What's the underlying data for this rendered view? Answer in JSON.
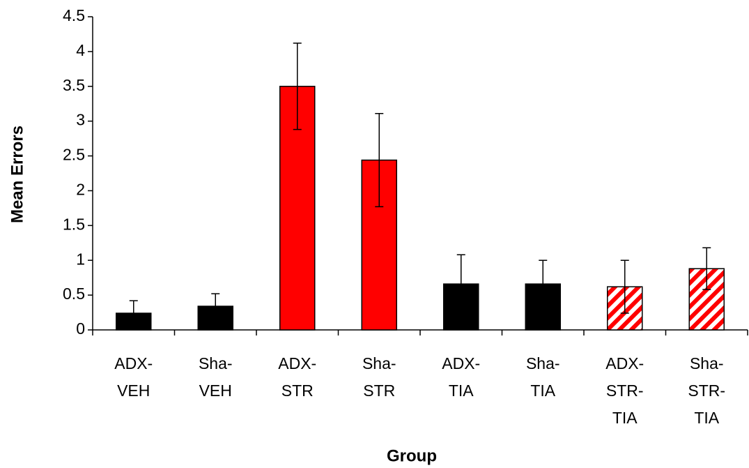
{
  "chart_data": {
    "type": "bar",
    "x_label": "Group",
    "y_label": "Mean Errors",
    "categories": [
      [
        "ADX-",
        "VEH"
      ],
      [
        "Sha-",
        "VEH"
      ],
      [
        "ADX-",
        "STR"
      ],
      [
        "Sha-",
        "STR"
      ],
      [
        "ADX-",
        "TIA"
      ],
      [
        "Sha-",
        "TIA"
      ],
      [
        "ADX-",
        "STR-",
        "TIA"
      ],
      [
        "Sha-",
        "STR-",
        "TIA"
      ]
    ],
    "values": [
      0.24,
      0.34,
      3.5,
      2.44,
      0.66,
      0.66,
      0.62,
      0.88
    ],
    "errors": [
      0.18,
      0.18,
      0.62,
      0.67,
      0.42,
      0.34,
      0.38,
      0.3
    ],
    "colors": [
      "#000000",
      "#000000",
      "#ff0000",
      "#ff0000",
      "#000000",
      "#000000",
      "#ff0000",
      "#ff0000"
    ],
    "hatched": [
      false,
      false,
      false,
      false,
      false,
      false,
      true,
      true
    ],
    "ylim": [
      0,
      4.5
    ],
    "yticks": [
      0,
      0.5,
      1,
      1.5,
      2,
      2.5,
      3,
      3.5,
      4,
      4.5
    ],
    "grid": false
  }
}
